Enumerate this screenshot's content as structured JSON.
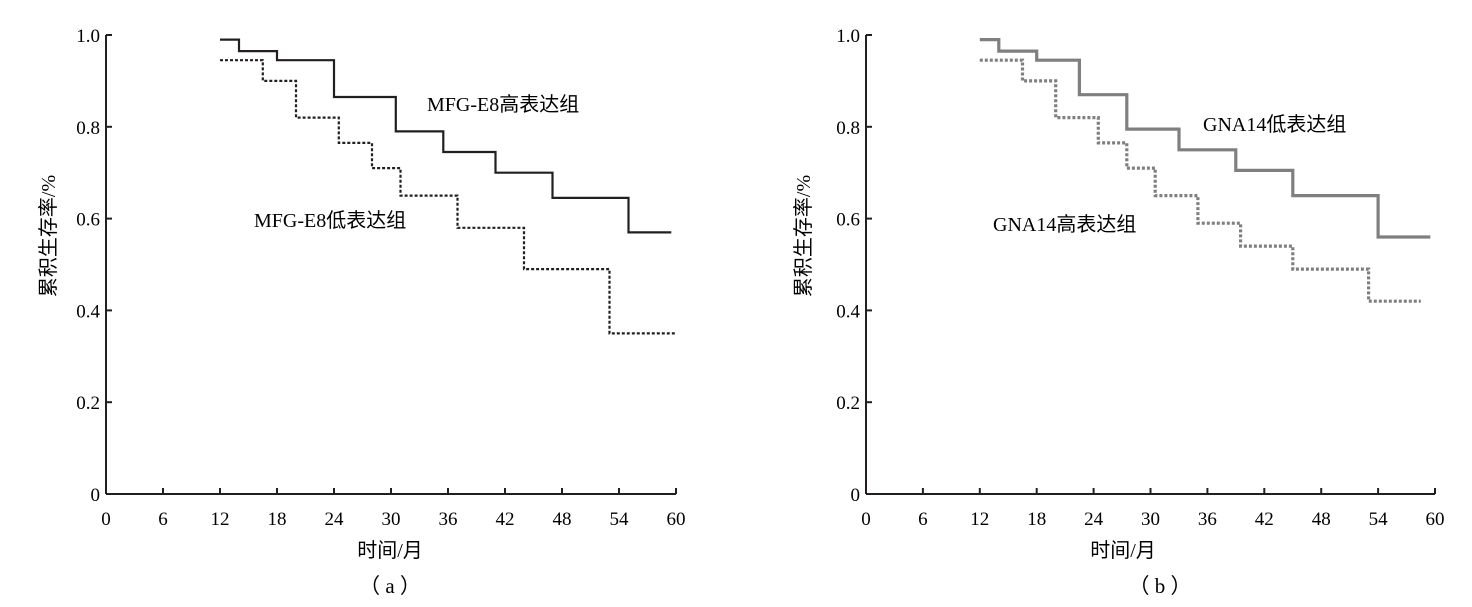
{
  "chart_data": [
    {
      "type": "line",
      "panel_label": "（ a ）",
      "xlabel": "时间/月",
      "ylabel": "累积生存率/%",
      "xlim": [
        0,
        60
      ],
      "ylim": [
        0,
        1.0
      ],
      "xticks": [
        "0",
        "6",
        "12",
        "18",
        "24",
        "30",
        "36",
        "42",
        "48",
        "54",
        "60"
      ],
      "yticks": [
        "0",
        "0.2",
        "0.4",
        "0.6",
        "0.8",
        "1.0"
      ],
      "grid": false,
      "series": [
        {
          "name": "MFG-E8高表达组",
          "style": "solid",
          "color": "#231f20",
          "x": [
            12,
            14,
            14,
            18,
            18,
            24,
            24,
            30.5,
            30.5,
            35.5,
            35.5,
            41,
            41,
            47,
            47,
            55,
            55,
            59.5
          ],
          "y": [
            0.99,
            0.99,
            0.965,
            0.965,
            0.945,
            0.945,
            0.865,
            0.865,
            0.79,
            0.79,
            0.745,
            0.745,
            0.7,
            0.7,
            0.645,
            0.645,
            0.57,
            0.57
          ]
        },
        {
          "name": "MFG-E8低表达组",
          "style": "dashed",
          "color": "#231f20",
          "x": [
            12,
            16.5,
            16.5,
            20,
            20,
            24.5,
            24.5,
            28,
            28,
            31,
            31,
            37,
            37,
            44,
            44,
            53,
            53,
            60
          ],
          "y": [
            0.945,
            0.945,
            0.9,
            0.9,
            0.82,
            0.82,
            0.765,
            0.765,
            0.71,
            0.71,
            0.65,
            0.65,
            0.58,
            0.58,
            0.49,
            0.49,
            0.35,
            0.35
          ]
        }
      ]
    },
    {
      "type": "line",
      "panel_label": "（ b ）",
      "xlabel": "时间/月",
      "ylabel": "累积生存率/%",
      "xlim": [
        0,
        60
      ],
      "ylim": [
        0,
        1.0
      ],
      "xticks": [
        "0",
        "6",
        "12",
        "18",
        "24",
        "30",
        "36",
        "42",
        "48",
        "54",
        "60"
      ],
      "yticks": [
        "0",
        "0.2",
        "0.4",
        "0.6",
        "0.8",
        "1.0"
      ],
      "grid": false,
      "series": [
        {
          "name": "GNA14低表达组",
          "style": "solid",
          "color": "#7f7f7f",
          "x": [
            12,
            14,
            14,
            18,
            18,
            22.5,
            22.5,
            27.5,
            27.5,
            33,
            33,
            39,
            39,
            45,
            45,
            54,
            54,
            59.5
          ],
          "y": [
            0.99,
            0.99,
            0.965,
            0.965,
            0.945,
            0.945,
            0.87,
            0.87,
            0.795,
            0.795,
            0.75,
            0.75,
            0.705,
            0.705,
            0.65,
            0.65,
            0.56,
            0.56
          ]
        },
        {
          "name": "GNA14高表达组",
          "style": "dashed",
          "color": "#7f7f7f",
          "x": [
            12,
            16.5,
            16.5,
            20,
            20,
            24.5,
            24.5,
            27.5,
            27.5,
            30.5,
            30.5,
            35,
            35,
            39.5,
            39.5,
            45,
            45,
            53,
            53,
            58.5
          ],
          "y": [
            0.945,
            0.945,
            0.9,
            0.9,
            0.82,
            0.82,
            0.765,
            0.765,
            0.71,
            0.71,
            0.65,
            0.65,
            0.59,
            0.59,
            0.54,
            0.54,
            0.49,
            0.49,
            0.42,
            0.42
          ]
        }
      ]
    }
  ]
}
